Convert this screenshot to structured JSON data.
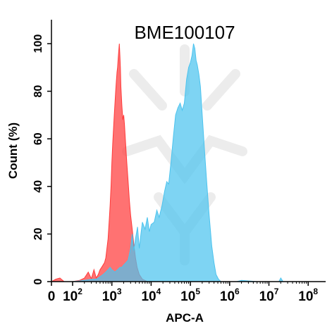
{
  "chart_data": {
    "type": "area",
    "title": "BME100107",
    "xlabel": "APC-A",
    "ylabel": "Count  (%)",
    "x_scale": "biexponential",
    "xlim": [
      0,
      100000000
    ],
    "ylim": [
      0,
      100
    ],
    "x_ticks": [
      {
        "base": "0",
        "exp": ""
      },
      {
        "base": "10",
        "exp": "2"
      },
      {
        "base": "10",
        "exp": "3"
      },
      {
        "base": "10",
        "exp": "4"
      },
      {
        "base": "10",
        "exp": "5"
      },
      {
        "base": "10",
        "exp": "6"
      },
      {
        "base": "10",
        "exp": "7"
      },
      {
        "base": "10",
        "exp": "8"
      }
    ],
    "y_ticks": [
      "0",
      "20",
      "40",
      "60",
      "80",
      "100"
    ],
    "grid": false,
    "legend": "none",
    "series": [
      {
        "color": "#ff3b3b",
        "points": [
          [
            0,
            0
          ],
          [
            20,
            1
          ],
          [
            40,
            1.5
          ],
          [
            60,
            0
          ],
          [
            100,
            0
          ],
          [
            150,
            0.5
          ],
          [
            200,
            1.5
          ],
          [
            250,
            4
          ],
          [
            300,
            1.2
          ],
          [
            350,
            5
          ],
          [
            400,
            1.5
          ],
          [
            450,
            3
          ],
          [
            500,
            5
          ],
          [
            550,
            6
          ],
          [
            600,
            7
          ],
          [
            650,
            8
          ],
          [
            700,
            10
          ],
          [
            750,
            14
          ],
          [
            800,
            18
          ],
          [
            850,
            25
          ],
          [
            900,
            32
          ],
          [
            950,
            40
          ],
          [
            1000,
            50
          ],
          [
            1050,
            58
          ],
          [
            1100,
            64
          ],
          [
            1150,
            70
          ],
          [
            1200,
            75
          ],
          [
            1250,
            80
          ],
          [
            1300,
            84
          ],
          [
            1350,
            88
          ],
          [
            1400,
            90
          ],
          [
            1450,
            94
          ],
          [
            1500,
            97
          ],
          [
            1550,
            100
          ],
          [
            1600,
            95
          ],
          [
            1650,
            90
          ],
          [
            1700,
            82
          ],
          [
            1750,
            78
          ],
          [
            1800,
            74
          ],
          [
            1850,
            71
          ],
          [
            1900,
            68
          ],
          [
            2000,
            70
          ],
          [
            2100,
            66
          ],
          [
            2200,
            60
          ],
          [
            2400,
            50
          ],
          [
            2600,
            42
          ],
          [
            2800,
            34
          ],
          [
            3000,
            28
          ],
          [
            3300,
            22
          ],
          [
            3600,
            16
          ],
          [
            4000,
            10
          ],
          [
            4400,
            6
          ],
          [
            5000,
            3
          ],
          [
            6000,
            1
          ],
          [
            8000,
            0
          ],
          [
            1000000,
            0
          ]
        ]
      },
      {
        "color": "#4cc3ee",
        "points": [
          [
            0,
            0
          ],
          [
            100,
            0
          ],
          [
            200,
            0.5
          ],
          [
            300,
            1
          ],
          [
            400,
            1
          ],
          [
            500,
            2
          ],
          [
            600,
            3
          ],
          [
            700,
            4
          ],
          [
            800,
            5
          ],
          [
            900,
            6
          ],
          [
            1000,
            5
          ],
          [
            1200,
            4
          ],
          [
            1400,
            5
          ],
          [
            1600,
            6
          ],
          [
            1800,
            6
          ],
          [
            2000,
            7
          ],
          [
            2300,
            8
          ],
          [
            2600,
            9
          ],
          [
            3000,
            14
          ],
          [
            3300,
            20
          ],
          [
            3600,
            13
          ],
          [
            4000,
            18
          ],
          [
            4500,
            23
          ],
          [
            5000,
            14
          ],
          [
            5500,
            20
          ],
          [
            6000,
            25
          ],
          [
            7000,
            22
          ],
          [
            8000,
            27
          ],
          [
            9000,
            21
          ],
          [
            10000,
            24
          ],
          [
            12000,
            25
          ],
          [
            14000,
            30
          ],
          [
            16000,
            27
          ],
          [
            19000,
            32
          ],
          [
            22000,
            38
          ],
          [
            25000,
            42
          ],
          [
            28000,
            41
          ],
          [
            32000,
            50
          ],
          [
            37000,
            61
          ],
          [
            42000,
            70
          ],
          [
            48000,
            73
          ],
          [
            55000,
            75
          ],
          [
            62000,
            72
          ],
          [
            70000,
            75
          ],
          [
            80000,
            85
          ],
          [
            90000,
            90
          ],
          [
            100000,
            92
          ],
          [
            110000,
            95
          ],
          [
            120000,
            100
          ],
          [
            130000,
            98
          ],
          [
            140000,
            93
          ],
          [
            150000,
            91
          ],
          [
            165000,
            87
          ],
          [
            180000,
            82
          ],
          [
            200000,
            70
          ],
          [
            230000,
            55
          ],
          [
            260000,
            42
          ],
          [
            300000,
            28
          ],
          [
            350000,
            15
          ],
          [
            400000,
            8
          ],
          [
            450000,
            3
          ],
          [
            520000,
            1
          ],
          [
            600000,
            0
          ],
          [
            1500000,
            0
          ],
          [
            2000000,
            0.5
          ],
          [
            3000000,
            0.3
          ],
          [
            5000000,
            0
          ],
          [
            10000000,
            0
          ],
          [
            18000000,
            0
          ],
          [
            20000000,
            1.5
          ],
          [
            23000000,
            0
          ],
          [
            100000000,
            0
          ]
        ]
      }
    ]
  }
}
